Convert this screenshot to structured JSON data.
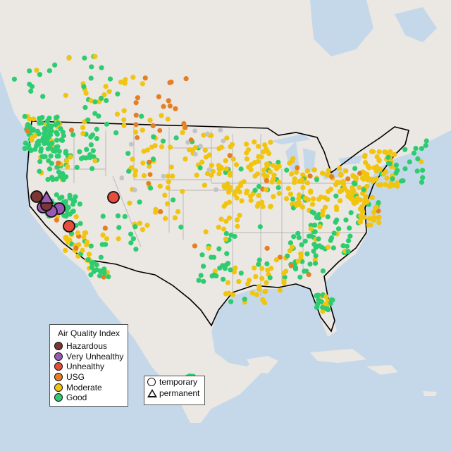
{
  "legend": {
    "title": "Air Quality Index",
    "categories": [
      {
        "label": "Hazardous",
        "color": "#7b3535"
      },
      {
        "label": "Very Unhealthy",
        "color": "#9b59b6"
      },
      {
        "label": "Unhealthy",
        "color": "#e74c3c"
      },
      {
        "label": "USG",
        "color": "#e67e22"
      },
      {
        "label": "Moderate",
        "color": "#f1c40f"
      },
      {
        "label": "Good",
        "color": "#2ecc71"
      }
    ]
  },
  "shape_legend": {
    "items": [
      {
        "label": "temporary",
        "shape": "circle"
      },
      {
        "label": "permanent",
        "shape": "triangle"
      }
    ]
  },
  "colors": {
    "ocean": "#c5d8ea",
    "land": "#ebe7e3",
    "unreported": "#c0c4c6"
  }
}
